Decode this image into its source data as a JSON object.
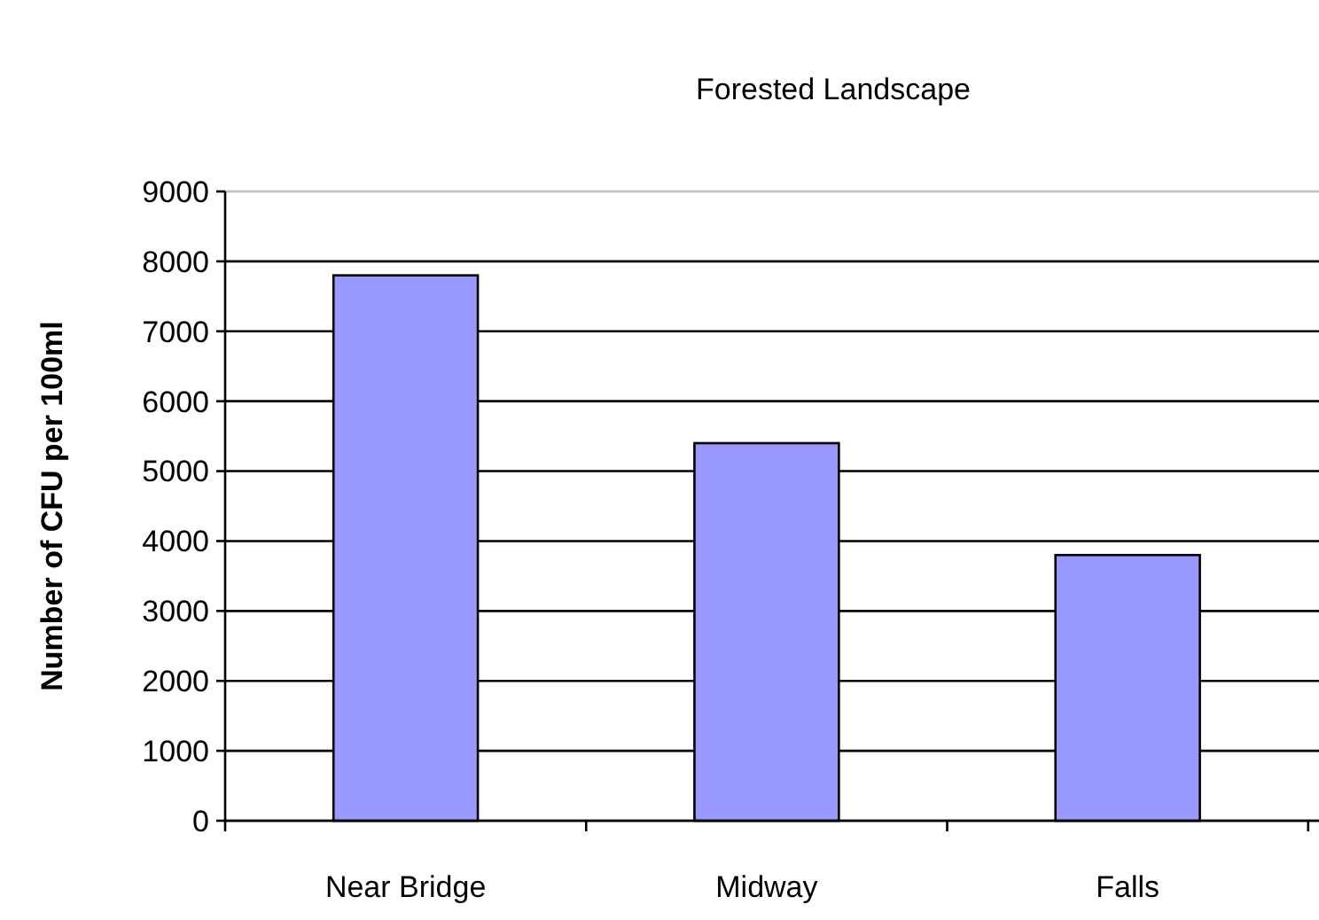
{
  "chart_data": {
    "type": "bar",
    "title": "Forested Landscape",
    "ylabel": "Number of CFU per 100ml",
    "categories": [
      "Near Bridge",
      "Midway",
      "Falls"
    ],
    "values": [
      7800,
      5400,
      3800
    ],
    "color": "#9999ff",
    "ylim": [
      0,
      9000
    ],
    "yticks": [
      0,
      1000,
      2000,
      3000,
      4000,
      5000,
      6000,
      7000,
      8000,
      9000
    ],
    "grid": "y"
  }
}
